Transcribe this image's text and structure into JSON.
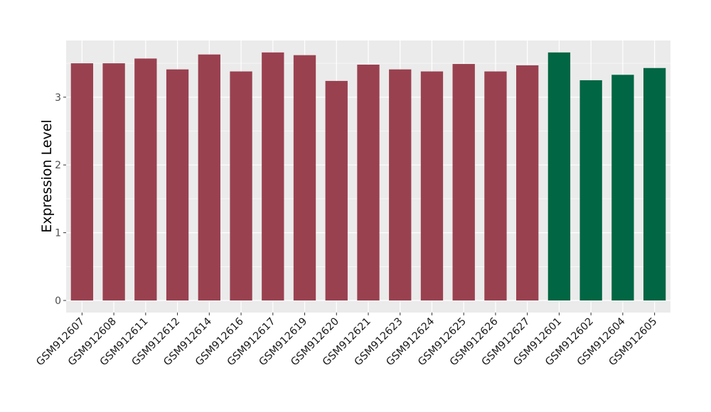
{
  "chart_data": {
    "type": "bar",
    "title": "",
    "xlabel": "",
    "ylabel": "Expression Level",
    "ylim": [
      0,
      3.85
    ],
    "yticks": [
      0,
      1,
      2,
      3
    ],
    "grid": true,
    "panel_background": "#ebebeb",
    "grid_color": "#ffffff",
    "categories": [
      "GSM912607",
      "GSM912608",
      "GSM912611",
      "GSM912612",
      "GSM912614",
      "GSM912616",
      "GSM912617",
      "GSM912619",
      "GSM912620",
      "GSM912621",
      "GSM912623",
      "GSM912624",
      "GSM912625",
      "GSM912626",
      "GSM912627",
      "GSM912601",
      "GSM912602",
      "GSM912604",
      "GSM912605"
    ],
    "values": [
      3.5,
      3.5,
      3.57,
      3.41,
      3.63,
      3.38,
      3.66,
      3.62,
      3.24,
      3.48,
      3.41,
      3.38,
      3.49,
      3.38,
      3.47,
      3.66,
      3.25,
      3.33,
      3.43
    ],
    "bar_colors": [
      "#9a4150",
      "#9a4150",
      "#9a4150",
      "#9a4150",
      "#9a4150",
      "#9a4150",
      "#9a4150",
      "#9a4150",
      "#9a4150",
      "#9a4150",
      "#9a4150",
      "#9a4150",
      "#9a4150",
      "#9a4150",
      "#9a4150",
      "#006644",
      "#006644",
      "#006644",
      "#006644"
    ]
  }
}
